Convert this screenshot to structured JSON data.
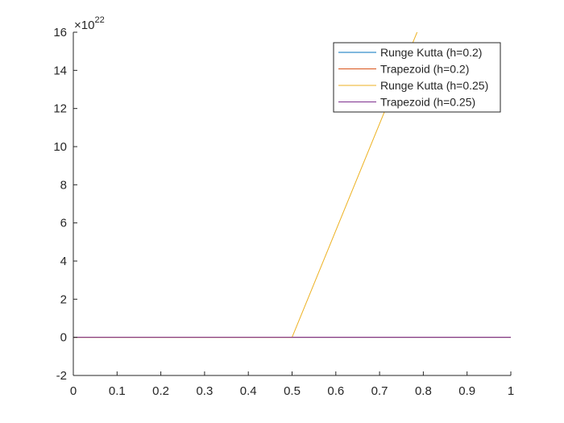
{
  "chart_data": {
    "type": "line",
    "title": "",
    "xlabel": "",
    "ylabel": "",
    "xlim": [
      0,
      1
    ],
    "ylim": [
      -2e+22,
      1.6e+23
    ],
    "y_exponent_label": {
      "base": "×10",
      "power": "22"
    },
    "x_ticks": [
      0,
      0.1,
      0.2,
      0.3,
      0.4,
      0.5,
      0.6,
      0.7,
      0.8,
      0.9,
      1
    ],
    "x_tick_labels": [
      "0",
      "0.1",
      "0.2",
      "0.3",
      "0.4",
      "0.5",
      "0.6",
      "0.7",
      "0.8",
      "0.9",
      "1"
    ],
    "y_ticks": [
      -2,
      0,
      2,
      4,
      6,
      8,
      10,
      12,
      14,
      16
    ],
    "y_tick_labels": [
      "-2",
      "0",
      "2",
      "4",
      "6",
      "8",
      "10",
      "12",
      "14",
      "16"
    ],
    "grid": false,
    "legend_position": "top-right",
    "series": [
      {
        "name": "Runge Kutta (h=0.2)",
        "color": "#0072BD",
        "x": [
          0,
          0.2,
          0.4,
          0.6,
          0.8,
          1.0
        ],
        "y": [
          0,
          0,
          0,
          0,
          0,
          0
        ]
      },
      {
        "name": "Trapezoid (h=0.2)",
        "color": "#D95319",
        "x": [
          0,
          0.2,
          0.4,
          0.6,
          0.8,
          1.0
        ],
        "y": [
          0,
          0,
          0,
          0,
          0,
          0
        ]
      },
      {
        "name": "Runge Kutta (h=0.25)",
        "color": "#EDB120",
        "x": [
          0,
          0.25,
          0.5,
          0.75,
          1.0
        ],
        "y": [
          0,
          0,
          0,
          1.4e+23,
          2.8e+23
        ]
      },
      {
        "name": "Trapezoid (h=0.25)",
        "color": "#7E2F8E",
        "x": [
          0,
          0.25,
          0.5,
          0.75,
          1.0
        ],
        "y": [
          0,
          0,
          0,
          0,
          0
        ]
      }
    ]
  }
}
